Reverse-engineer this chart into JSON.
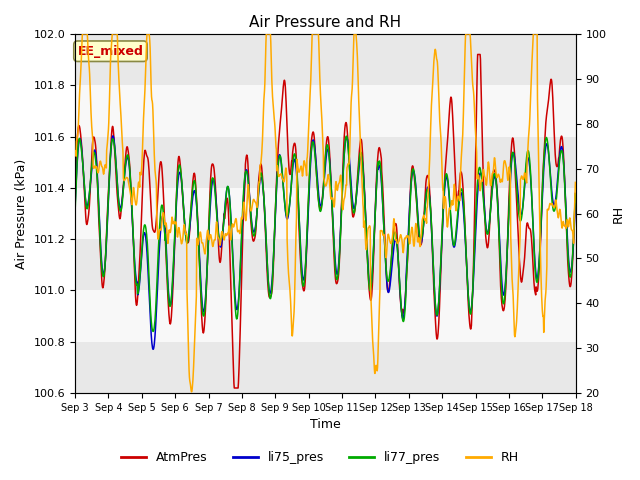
{
  "title": "Air Pressure and RH",
  "xlabel": "Time",
  "ylabel_left": "Air Pressure (kPa)",
  "ylabel_right": "RH",
  "annotation": "EE_mixed",
  "ylim_left": [
    100.6,
    102.0
  ],
  "ylim_right": [
    20,
    100
  ],
  "yticks_left": [
    100.6,
    100.8,
    101.0,
    101.2,
    101.4,
    101.6,
    101.8,
    102.0
  ],
  "yticks_right": [
    20,
    30,
    40,
    50,
    60,
    70,
    80,
    90,
    100
  ],
  "xtick_labels": [
    "Sep 3",
    "Sep 4",
    "Sep 5",
    "Sep 6",
    "Sep 7",
    "Sep 8",
    "Sep 9",
    "Sep 10",
    "Sep 11",
    "Sep 12",
    "Sep 13",
    "Sep 14",
    "Sep 15",
    "Sep 16",
    "Sep 17",
    "Sep 18"
  ],
  "colors": {
    "AtmPres": "#cc0000",
    "li75_pres": "#0000cc",
    "li77_pres": "#00aa00",
    "RH": "#ffaa00"
  },
  "legend_labels": [
    "AtmPres",
    "li75_pres",
    "li77_pres",
    "RH"
  ],
  "background_color": "#ffffff",
  "plot_bg_color": "#f0f0f0",
  "band_color_light": "#e8e8e8",
  "band_color_white": "#f8f8f8",
  "annotation_bg": "#ffffcc",
  "annotation_border": "#aaaa00",
  "n_days": 15,
  "seed": 12345
}
